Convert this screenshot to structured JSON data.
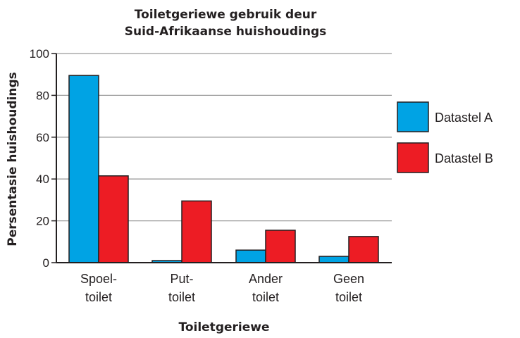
{
  "chart_data": {
    "type": "bar",
    "title_lines": [
      "Toiletgeriewe gebruik deur",
      "Suid-Afrikaanse huishoudings"
    ],
    "xlabel": "Toiletgeriewe",
    "ylabel": "Persentasie huishoudings",
    "ylim": [
      0,
      100
    ],
    "yticks": [
      0,
      20,
      40,
      60,
      80,
      100
    ],
    "grid": true,
    "legend_position": "right",
    "categories": [
      {
        "line1": "Spoel-",
        "line2": "toilet"
      },
      {
        "line1": "Put-",
        "line2": "toilet"
      },
      {
        "line1": "Ander",
        "line2": "toilet"
      },
      {
        "line1": "Geen",
        "line2": "toilet"
      }
    ],
    "series": [
      {
        "name": "Datastel A",
        "color": "#00a3e4",
        "values": [
          89.5,
          1,
          6,
          3
        ]
      },
      {
        "name": "Datastel B",
        "color": "#ed1c24",
        "values": [
          41.5,
          29.5,
          15.5,
          12.5
        ]
      }
    ]
  }
}
